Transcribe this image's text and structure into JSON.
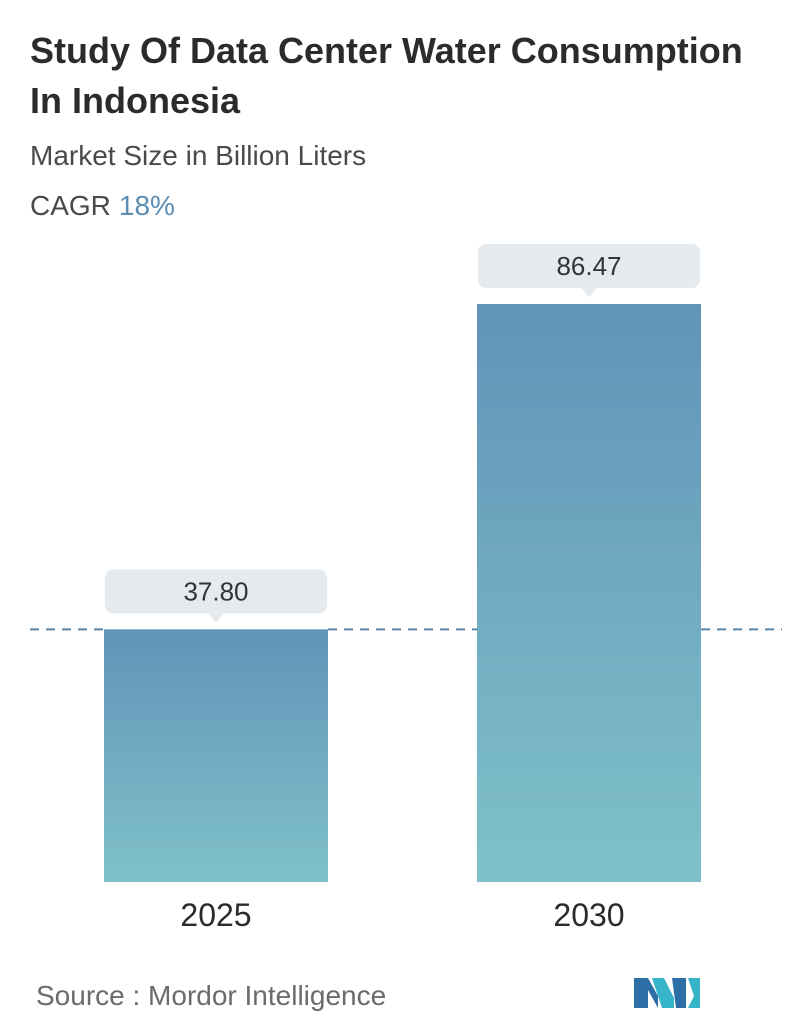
{
  "header": {
    "title": "Study Of Data Center Water Consumption In Indonesia",
    "subtitle": "Market Size in Billion Liters",
    "cagr_label": "CAGR",
    "cagr_value": "18%"
  },
  "footer": {
    "source": "Source :  Mordor Intelligence"
  },
  "colors": {
    "bar_top": "#6194b8",
    "bar_bottom": "#7fc1c9",
    "label_bg": "#e4eaed",
    "cagr_accent": "#5b8db3",
    "dashed_line": "#5b84a8"
  },
  "chart_data": {
    "type": "bar",
    "categories": [
      "2025",
      "2030"
    ],
    "values": [
      37.8,
      86.47
    ],
    "value_labels": [
      "37.80",
      "86.47"
    ],
    "title": "Study Of Data Center Water Consumption In Indonesia",
    "ylabel": "",
    "xlabel": "",
    "ylim": [
      0,
      86.47
    ],
    "grid": false,
    "reference_line": 37.8
  }
}
